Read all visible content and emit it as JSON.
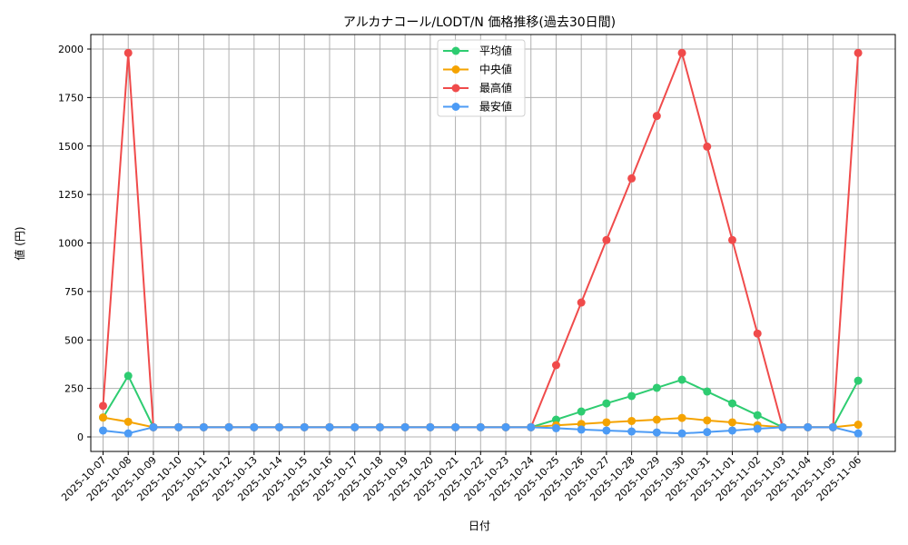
{
  "chart_data": {
    "type": "line",
    "title": "アルカナコール/LODT/N 価格推移(過去30日間)",
    "xlabel": "日付",
    "ylabel": "値 (円)",
    "ylim": [
      -75,
      2075
    ],
    "yticks": [
      0,
      250,
      500,
      750,
      1000,
      1250,
      1500,
      1750,
      2000
    ],
    "grid": true,
    "legend_position": "upper center",
    "x": [
      "2025-10-07",
      "2025-10-08",
      "2025-10-09",
      "2025-10-10",
      "2025-10-11",
      "2025-10-12",
      "2025-10-13",
      "2025-10-14",
      "2025-10-15",
      "2025-10-16",
      "2025-10-17",
      "2025-10-18",
      "2025-10-19",
      "2025-10-20",
      "2025-10-21",
      "2025-10-22",
      "2025-10-23",
      "2025-10-24",
      "2025-10-25",
      "2025-10-26",
      "2025-10-27",
      "2025-10-28",
      "2025-10-29",
      "2025-10-30",
      "2025-10-31",
      "2025-11-01",
      "2025-11-02",
      "2025-11-03",
      "2025-11-04",
      "2025-11-05",
      "2025-11-06"
    ],
    "series": [
      {
        "name": "平均値",
        "color": "#2ecc71",
        "values": [
          100,
          315,
          50,
          50,
          50,
          50,
          50,
          50,
          50,
          50,
          50,
          50,
          50,
          50,
          50,
          50,
          50,
          50,
          89,
          131,
          173,
          211,
          253,
          295,
          234,
          173,
          112,
          50,
          50,
          50,
          290
        ]
      },
      {
        "name": "中央値",
        "color": "#f5a300",
        "values": [
          100,
          78,
          50,
          50,
          50,
          50,
          50,
          50,
          50,
          50,
          50,
          50,
          50,
          50,
          50,
          50,
          50,
          50,
          60,
          67,
          75,
          82,
          89,
          98,
          85,
          75,
          60,
          50,
          50,
          50,
          63
        ]
      },
      {
        "name": "最高値",
        "color": "#f04b4b",
        "values": [
          160,
          1980,
          50,
          50,
          50,
          50,
          50,
          50,
          50,
          50,
          50,
          50,
          50,
          50,
          50,
          50,
          50,
          50,
          370,
          693,
          1015,
          1333,
          1655,
          1980,
          1497,
          1015,
          533,
          50,
          50,
          50,
          1980
        ]
      },
      {
        "name": "最安値",
        "color": "#4c9bf5",
        "values": [
          33,
          18,
          50,
          50,
          50,
          50,
          50,
          50,
          50,
          50,
          50,
          50,
          50,
          50,
          50,
          50,
          50,
          50,
          45,
          38,
          33,
          28,
          23,
          18,
          25,
          33,
          42,
          50,
          50,
          50,
          18
        ]
      }
    ]
  }
}
